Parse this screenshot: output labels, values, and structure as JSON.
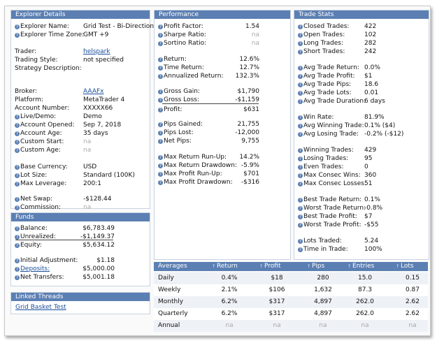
{
  "explorer": {
    "title": "Explorer Details",
    "rows": [
      {
        "label": "Explorer Name:",
        "value": "Grid Test - Bi-Directiona",
        "q": true
      },
      {
        "label": "Explorer Time Zone:",
        "value": "GMT +9",
        "q": true
      },
      {
        "label": "Trader:",
        "value": "helspark",
        "link": true
      },
      {
        "label": "Trading Style:",
        "value": "not specified"
      },
      {
        "label": "Strategy Description:",
        "value": ""
      },
      {
        "label": "Broker:",
        "value": "AAAFx",
        "link": true
      },
      {
        "label": "Platform:",
        "value": "MetaTrader 4"
      },
      {
        "label": "Account Number:",
        "value": "XXXXX66"
      },
      {
        "label": "Live/Demo:",
        "value": "Demo",
        "q": true
      },
      {
        "label": "Account Opened:",
        "value": "Sep 7, 2018",
        "q": true
      },
      {
        "label": "Account Age:",
        "value": "35 days",
        "q": true
      },
      {
        "label": "Custom Start:",
        "value": "na",
        "q": true,
        "na": true
      },
      {
        "label": "Custom Age:",
        "value": "na",
        "q": true,
        "na": true
      },
      {
        "label": "Base Currency:",
        "value": "USD",
        "q": true
      },
      {
        "label": "Lot Size:",
        "value": "Standard (100K)",
        "q": true
      },
      {
        "label": "Max Leverage:",
        "value": "200:1",
        "q": true
      },
      {
        "label": "Net Swap:",
        "value": "-$128.44",
        "q": true
      },
      {
        "label": "Commission:",
        "value": "na",
        "q": true,
        "na": true
      }
    ]
  },
  "funds": {
    "title": "Funds",
    "rows": [
      {
        "label": "Balance:",
        "value": "$6,783.49"
      },
      {
        "label": "Unrealized:",
        "value": "-$1,149.37"
      },
      {
        "label": "Equity:",
        "value": "$5,634.12"
      },
      {
        "label": "Initial Adjustment:",
        "value": "$1.18"
      },
      {
        "label": "Deposits:",
        "value": "$5,000.00",
        "link": true
      },
      {
        "label": "Net Transfers:",
        "value": "$5,001.18"
      }
    ]
  },
  "threads": {
    "title": "Linked Threads",
    "link": "Grid Basket Test"
  },
  "performance": {
    "title": "Performance",
    "rows": [
      {
        "label": "Profit Factor:",
        "value": "1.54"
      },
      {
        "label": "Sharpe Ratio:",
        "value": "na",
        "na": true
      },
      {
        "label": "Sortino Ratio:",
        "value": "na",
        "na": true
      },
      {
        "label": "Return:",
        "value": "12.6%"
      },
      {
        "label": "Time Return:",
        "value": "12.7%"
      },
      {
        "label": "Annualized Return:",
        "value": "132.3%"
      },
      {
        "label": "Gross Gain:",
        "value": "$1,790"
      },
      {
        "label": "Gross Loss:",
        "value": "-$1,159"
      },
      {
        "label": "Profit:",
        "value": "$631"
      },
      {
        "label": "Pips Gained:",
        "value": "21,755"
      },
      {
        "label": "Pips Lost:",
        "value": "-12,000"
      },
      {
        "label": "Net Pips:",
        "value": "9,755"
      },
      {
        "label": "Max Return Run-Up:",
        "value": "14.2%"
      },
      {
        "label": "Max Return Drawdown:",
        "value": "-5.9%"
      },
      {
        "label": "Max Profit Run-Up:",
        "value": "$701"
      },
      {
        "label": "Max Profit Drawdown:",
        "value": "-$316"
      }
    ]
  },
  "tradestats": {
    "title": "Trade Stats",
    "rows": [
      {
        "label": "Closed Trades:",
        "value": "422"
      },
      {
        "label": "Open Trades:",
        "value": "102"
      },
      {
        "label": "Long Trades:",
        "value": "282"
      },
      {
        "label": "Short Trades:",
        "value": "242"
      },
      {
        "label": "Avg Trade Return:",
        "value": "0.0%"
      },
      {
        "label": "Avg Trade Profit:",
        "value": "$1"
      },
      {
        "label": "Avg Trade Pips:",
        "value": "18.6"
      },
      {
        "label": "Avg Trade Lots:",
        "value": "0.01"
      },
      {
        "label": "Avg Trade Duration:",
        "value": "6 days"
      },
      {
        "label": "Win Rate:",
        "value": "81.9%"
      },
      {
        "label": "Avg Winning Trade:",
        "value": "0.1% ($4)"
      },
      {
        "label": "Avg Losing Trade:",
        "value": "-0.2% (-$12)"
      },
      {
        "label": "Winning Trades:",
        "value": "429"
      },
      {
        "label": "Losing Trades:",
        "value": "95"
      },
      {
        "label": "Even Trades:",
        "value": "0"
      },
      {
        "label": "Max Consec Wins:",
        "value": "360"
      },
      {
        "label": "Max Consec Losses:",
        "value": "51"
      },
      {
        "label": "Best Trade Return:",
        "value": "0.1%"
      },
      {
        "label": "Worst Trade Return:",
        "value": "-0.8%"
      },
      {
        "label": "Best Trade Profit:",
        "value": "$7"
      },
      {
        "label": "Worst Trade Profit:",
        "value": "-$55"
      },
      {
        "label": "Lots Traded:",
        "value": "5.24"
      },
      {
        "label": "Time in Trade:",
        "value": "100%"
      }
    ]
  },
  "averages": {
    "title": "Averages",
    "columns": [
      "Return",
      "Profit",
      "Pips",
      "Entries",
      "Lots"
    ],
    "rows": [
      {
        "period": "Daily",
        "values": [
          "0.4%",
          "$18",
          "280",
          "15.0",
          "0.15"
        ]
      },
      {
        "period": "Weekly",
        "values": [
          "2.1%",
          "$106",
          "1,632",
          "87.3",
          "0.87"
        ]
      },
      {
        "period": "Monthly",
        "values": [
          "6.2%",
          "$317",
          "4,897",
          "262.0",
          "2.62"
        ]
      },
      {
        "period": "Quarterly",
        "values": [
          "6.2%",
          "$317",
          "4,897",
          "262.0",
          "2.62"
        ]
      },
      {
        "period": "Annual",
        "values": [
          "na",
          "na",
          "na",
          "na",
          "na"
        ]
      }
    ]
  },
  "colors": {
    "header": "#5b7fb3",
    "link": "#1a4d9c",
    "na": "#aaaaaa"
  }
}
